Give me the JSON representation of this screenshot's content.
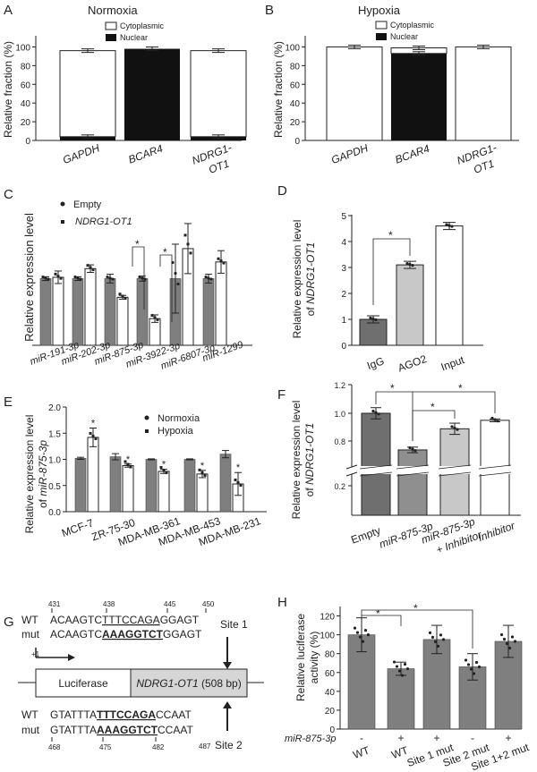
{
  "colors": {
    "gray": "#7f7f7f",
    "black": "#111111",
    "lightgray": "#c8c8c8",
    "white": "#ffffff"
  },
  "panels": {
    "A": {
      "letter": "A",
      "title": "Normoxia",
      "legend": [
        "Cytoplasmic",
        "Nuclear"
      ]
    },
    "B": {
      "letter": "B",
      "title": "Hypoxia",
      "legend": [
        "Cytoplasmic",
        "Nuclear"
      ]
    },
    "C": {
      "letter": "C",
      "legend": [
        "Empty",
        "NDRG1-OT1"
      ],
      "star": "*"
    },
    "D": {
      "letter": "D",
      "star": "*"
    },
    "E": {
      "letter": "E",
      "legend": [
        "Normoxia",
        "Hypoxia"
      ],
      "star": "*"
    },
    "F": {
      "letter": "F",
      "star": "*"
    },
    "G": {
      "letter": "G",
      "site1_label": "Site 1",
      "site2_label": "Site 2",
      "box_luciferase": "Luciferase",
      "box_gene": "NDRG1-OT1",
      "box_gene_suffix": " (508 bp)",
      "plus_one": "+1",
      "top_pos": [
        "431",
        "438",
        "445",
        "450"
      ],
      "wt1_lbl": "WT",
      "wt1_pre": "ACAAGTC",
      "wt1_site": "TTTCCAGA",
      "wt1_post": "GGAGT",
      "mut1_lbl": "mut",
      "mut1_pre": "ACAAGTC",
      "mut1_site": "AAAGGTCT",
      "mut1_post": "GGAGT",
      "wt2_lbl": "WT",
      "wt2_pre": "GTATTTA",
      "wt2_site": "TTTCCAGA",
      "wt2_post": "CCAAT",
      "mut2_lbl": "mut",
      "mut2_pre": "GTATTTA",
      "mut2_site": "AAAGGTCT",
      "mut2_post": "CCAAT",
      "bot_pos": [
        "468",
        "475",
        "482",
        "487"
      ]
    },
    "H": {
      "letter": "H",
      "treat_label": "miR-875-3p",
      "treat_signs": [
        "-",
        "+",
        "+",
        "-",
        "+"
      ],
      "star": "*"
    }
  },
  "chart_data": [
    {
      "id": "A",
      "type": "bar",
      "stacked": true,
      "title": "Normoxia",
      "ylabel": "Relative fraction (%)",
      "ylim": [
        0,
        110
      ],
      "yticks": [
        0,
        20,
        40,
        60,
        80,
        100
      ],
      "categories": [
        "GAPDH",
        "BCAR4",
        "NDRG1-OT1"
      ],
      "series": [
        {
          "name": "Nuclear",
          "values": [
            4,
            98,
            4
          ]
        },
        {
          "name": "Cytoplasmic",
          "values": [
            92,
            0,
            92
          ]
        }
      ]
    },
    {
      "id": "B",
      "type": "bar",
      "stacked": true,
      "title": "Hypoxia",
      "ylabel": "Relative fraction (%)",
      "ylim": [
        0,
        110
      ],
      "yticks": [
        0,
        20,
        40,
        60,
        80,
        100
      ],
      "categories": [
        "GAPDH",
        "BCAR4",
        "NDRG1-OT1"
      ],
      "series": [
        {
          "name": "Nuclear",
          "values": [
            0,
            93,
            0
          ]
        },
        {
          "name": "Cytoplasmic",
          "values": [
            100,
            6,
            100
          ]
        }
      ]
    },
    {
      "id": "C",
      "type": "bar",
      "ylabel": "Relative expression level",
      "ylim": [
        0,
        2.2
      ],
      "categories": [
        "miR-191-3p",
        "miR-202-3p",
        "miR-875-3p",
        "miR-3922-3p",
        "miR-6807-3p",
        "miR-1299"
      ],
      "series": [
        {
          "name": "Empty",
          "values": [
            1.0,
            1.0,
            1.0,
            1.0,
            1.0,
            1.0
          ]
        },
        {
          "name": "NDRG1-OT1",
          "values": [
            1.02,
            1.15,
            0.72,
            0.4,
            1.45,
            1.25
          ]
        }
      ]
    },
    {
      "id": "D",
      "type": "bar",
      "ylabel": "Relative expression level of NDRG1-OT1",
      "ylim": [
        0,
        5
      ],
      "yticks": [
        0,
        1,
        2,
        3,
        4,
        5
      ],
      "categories": [
        "IgG",
        "AGO2",
        "Input"
      ],
      "values": [
        1.0,
        3.1,
        4.6
      ]
    },
    {
      "id": "E",
      "type": "bar",
      "ylabel": "Relative expression level of miR-875-3p",
      "ylim": [
        0,
        2.0
      ],
      "yticks": [
        0.0,
        0.5,
        1.0,
        1.5,
        2.0
      ],
      "categories": [
        "MCF-7",
        "ZR-75-30",
        "MDA-MB-361",
        "MDA-MB-453",
        "MDA-MB-231"
      ],
      "series": [
        {
          "name": "Normoxia",
          "values": [
            1.02,
            1.05,
            1.0,
            1.0,
            1.1
          ]
        },
        {
          "name": "Hypoxia",
          "values": [
            1.42,
            0.88,
            0.77,
            0.72,
            0.53
          ]
        }
      ]
    },
    {
      "id": "F",
      "type": "bar",
      "ylabel": "Relative expression level of NDRG1-OT1",
      "yticks": [
        0.2,
        0.8,
        1.0,
        1.2
      ],
      "broken_axis": true,
      "categories": [
        "Empty",
        "miR-875-3p",
        "miR-875-3p + Inhibitor",
        "Inhibitor"
      ],
      "values": [
        1.0,
        0.74,
        0.89,
        0.95
      ]
    },
    {
      "id": "H",
      "type": "bar",
      "ylabel": "Relative luciferase activity (%)",
      "ylim": [
        0,
        130
      ],
      "yticks": [
        0,
        20,
        40,
        60,
        80,
        100,
        120
      ],
      "categories": [
        "WT",
        "WT",
        "Site 1 mut",
        "Site 2 mut",
        "Site 1+2 mut"
      ],
      "values": [
        100,
        64,
        95,
        66,
        93
      ]
    }
  ]
}
